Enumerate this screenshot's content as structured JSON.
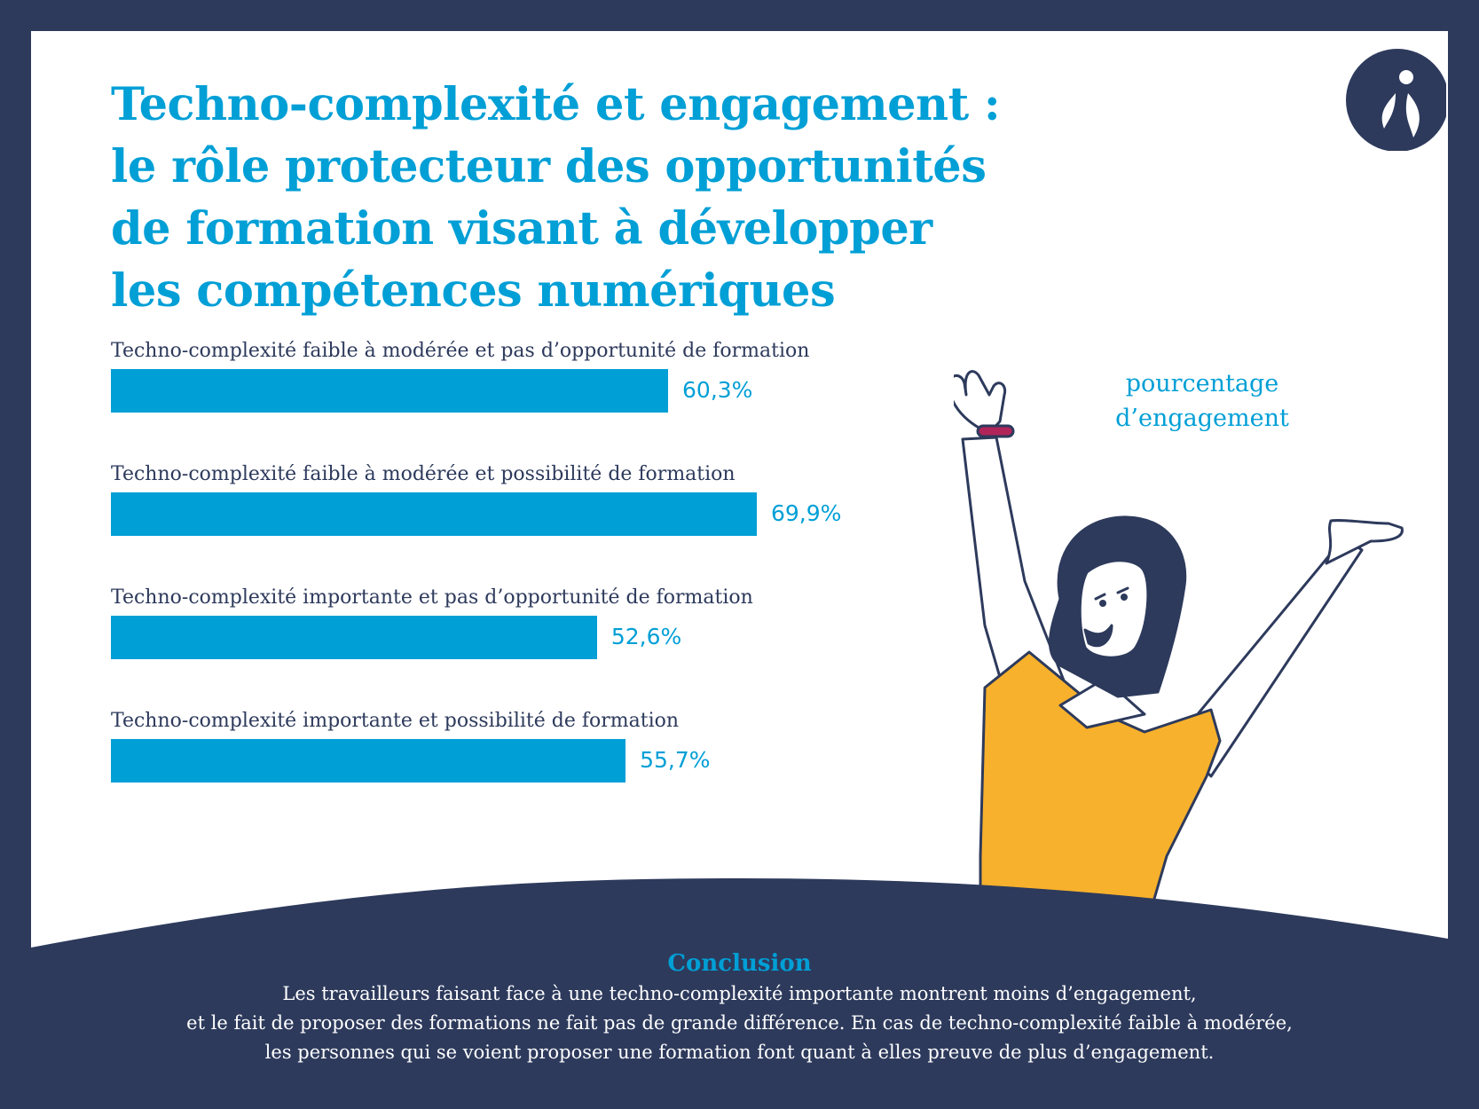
{
  "title_lines": [
    "Techno-complexité et engagement :",
    "le rôle protecteur des opportunités",
    "de formation visant à développer",
    "les compétences numériques"
  ],
  "legend_note": [
    "pourcentage",
    "d’engagement"
  ],
  "chart_data": {
    "type": "bar",
    "orientation": "horizontal",
    "categories": [
      "Techno-complexité faible à modérée et pas d’opportunité de formation",
      "Techno-complexité faible à modérée et possibilité de formation",
      "Techno-complexité importante et pas d’opportunité de formation",
      "Techno-complexité importante et possibilité de formation"
    ],
    "values": [
      60.3,
      69.9,
      52.6,
      55.7
    ],
    "value_labels": [
      "60,3%",
      "69,9%",
      "52,6%",
      "55,7%"
    ],
    "unit": "%",
    "grid": false,
    "bar_color": "#009fd6"
  },
  "conclusion": {
    "title": "Conclusion",
    "lines": [
      "Les travailleurs faisant face à une techno-complexité importante montrent moins d’engagement,",
      "et le fait de proposer des formations ne fait pas de grande différence. En cas de techno-complexité faible à modérée,",
      "les personnes qui se voient proposer une formation font quant à elles preuve de plus d’engagement."
    ]
  },
  "colors": {
    "navy": "#2d3a5c",
    "accent": "#009fd6",
    "shirt": "#f8b12c",
    "bracelet": "#b0245a"
  },
  "icons": {
    "logo": "brand-logo-icon",
    "illustration": "cheering-woman-illustration"
  }
}
